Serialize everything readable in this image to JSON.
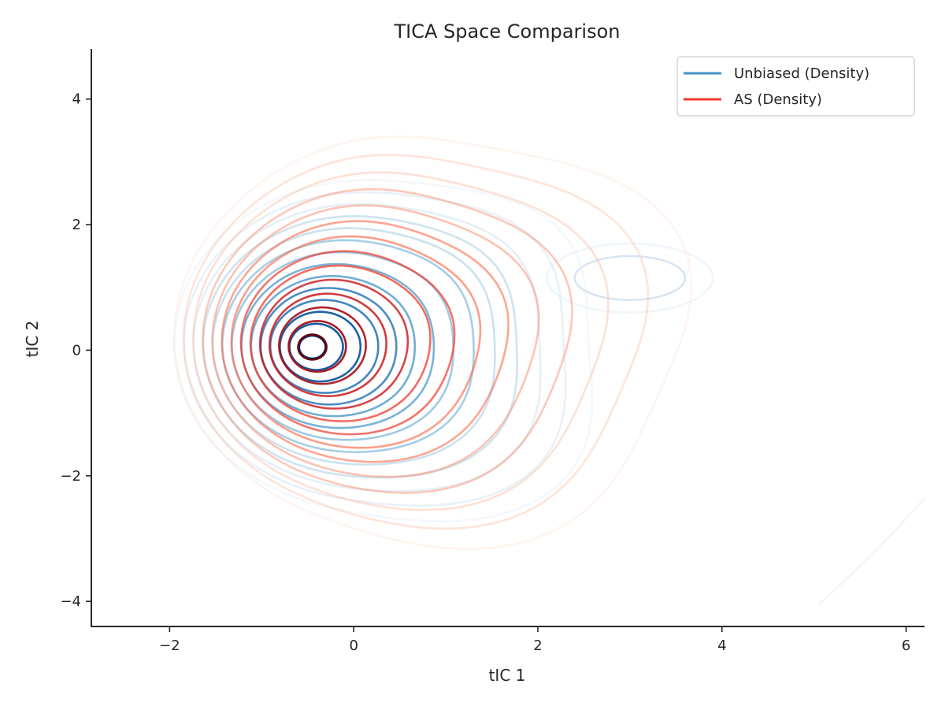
{
  "chart_data": {
    "type": "contour",
    "title": "TICA Space Comparison",
    "xlabel": "tIC 1",
    "ylabel": "tIC 2",
    "xlim": [
      -2.85,
      6.2
    ],
    "ylim": [
      -4.4,
      4.8
    ],
    "xticks": [
      -2,
      0,
      2,
      4,
      6
    ],
    "yticks": [
      -4,
      -2,
      0,
      2,
      4
    ],
    "xtick_labels": [
      "−2",
      "0",
      "2",
      "4",
      "6"
    ],
    "ytick_labels": [
      "−4",
      "−2",
      "0",
      "2",
      "4"
    ],
    "grid": false,
    "legend_position": "top-right",
    "series": [
      {
        "name": "Unbiased (Density)",
        "color": "#4292c6",
        "colormap": "Blues",
        "main_mode": {
          "x": -0.45,
          "y": 0.05
        },
        "secondary_mode": {
          "x": 3.2,
          "y": 1.2
        },
        "level_count": 14
      },
      {
        "name": "AS (Density)",
        "color": "#ef3b2c",
        "colormap": "Reds",
        "main_mode": {
          "x": -0.45,
          "y": 0.05
        },
        "level_count": 14
      }
    ]
  }
}
